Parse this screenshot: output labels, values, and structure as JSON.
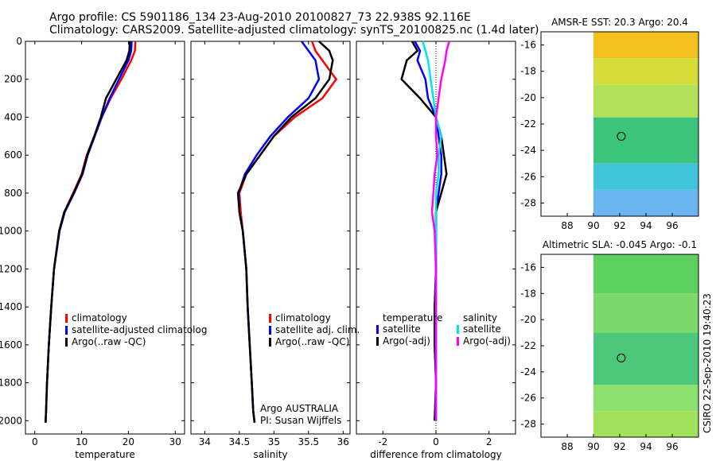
{
  "header": {
    "line1": "Argo profile: CS 5901186_134 23-Aug-2010 20100827_73 22.938S 92.116E",
    "line2": "Climatology: CARS2009. Satellite-adjusted climatology: synTS_20100825.nc (1.4d later)"
  },
  "footer_stamp": "CSIRO 22-Sep-2010 19:40:23",
  "colors": {
    "climatology": "#ff0000",
    "satellite": "#0000ff",
    "argo": "#000000",
    "salinity_sat": "#00e5e5",
    "salinity_argo": "#ff00ff"
  },
  "chart_data": [
    {
      "type": "line",
      "id": "temperature",
      "xlabel": "temperature",
      "ylabel": "",
      "xlim": [
        -2,
        32
      ],
      "ylim": [
        2070,
        0
      ],
      "xticks": [
        0,
        10,
        20,
        30
      ],
      "yticks": [
        0,
        200,
        400,
        600,
        800,
        1000,
        1200,
        1400,
        1600,
        1800,
        2000
      ],
      "legend": [
        "climatology",
        "satellite-adjusted climatolog",
        "Argo(..raw -QC)"
      ],
      "series": [
        {
          "name": "climatology",
          "color": "#ff0000",
          "x": [
            21.5,
            21.4,
            20.6,
            18.5,
            16.2,
            14.3,
            12.7,
            11.1,
            10.0,
            8.2,
            6.3,
            5.2,
            4.1,
            3.5,
            3.0,
            2.6,
            2.4,
            2.3
          ],
          "y": [
            0,
            50,
            100,
            200,
            300,
            400,
            500,
            600,
            700,
            800,
            900,
            1000,
            1200,
            1400,
            1600,
            1800,
            1950,
            2010
          ]
        },
        {
          "name": "satellite-adjusted climatology",
          "color": "#0000ff",
          "x": [
            20.7,
            20.6,
            20.0,
            18.0,
            16.0,
            14.3,
            12.8,
            11.3,
            10.2,
            8.4,
            6.4,
            5.3,
            4.1,
            3.5,
            3.0,
            2.6,
            2.4,
            2.3
          ],
          "y": [
            0,
            50,
            100,
            200,
            300,
            400,
            500,
            600,
            700,
            800,
            900,
            1000,
            1200,
            1400,
            1600,
            1800,
            1950,
            2010
          ]
        },
        {
          "name": "Argo(..raw -QC)",
          "color": "#000000",
          "x": [
            20.3,
            20.2,
            19.6,
            17.4,
            15.2,
            14.1,
            12.7,
            11.2,
            10.1,
            8.3,
            6.3,
            5.2,
            4.1,
            3.5,
            3.0,
            2.6,
            2.4,
            2.3
          ],
          "y": [
            0,
            50,
            100,
            200,
            300,
            400,
            500,
            600,
            700,
            800,
            900,
            1000,
            1200,
            1400,
            1600,
            1800,
            1950,
            2010
          ]
        }
      ]
    },
    {
      "type": "line",
      "id": "salinity",
      "xlabel": "salinity",
      "xlim": [
        33.8,
        36.1
      ],
      "ylim": [
        2070,
        0
      ],
      "xticks": [
        34,
        34.5,
        35,
        35.5,
        36
      ],
      "legend": [
        "climatology",
        "satellite adj. clim.",
        "Argo(..raw -QC)"
      ],
      "annotation": [
        "Argo AUSTRALIA",
        "PI: Susan Wijffels"
      ],
      "series": [
        {
          "name": "climatology",
          "color": "#ff0000",
          "x": [
            35.55,
            35.6,
            35.7,
            35.9,
            35.7,
            35.3,
            35.0,
            34.8,
            34.6,
            34.5,
            34.52,
            34.55,
            34.6,
            34.62,
            34.65,
            34.68,
            34.7,
            34.72
          ],
          "y": [
            0,
            50,
            100,
            200,
            300,
            400,
            500,
            600,
            700,
            800,
            900,
            1000,
            1200,
            1400,
            1600,
            1800,
            1950,
            2010
          ]
        },
        {
          "name": "satellite adj. clim.",
          "color": "#0000ff",
          "x": [
            35.4,
            35.5,
            35.6,
            35.65,
            35.5,
            35.2,
            34.95,
            34.75,
            34.58,
            34.49,
            34.5,
            34.55,
            34.6,
            34.62,
            34.65,
            34.68,
            34.7,
            34.72
          ],
          "y": [
            0,
            50,
            100,
            200,
            300,
            400,
            500,
            600,
            700,
            800,
            900,
            1000,
            1200,
            1400,
            1600,
            1800,
            1950,
            2010
          ]
        },
        {
          "name": "Argo(..raw -QC)",
          "color": "#000000",
          "x": [
            35.65,
            35.8,
            35.85,
            35.8,
            35.6,
            35.25,
            35.0,
            34.8,
            34.6,
            34.48,
            34.5,
            34.55,
            34.6,
            34.62,
            34.65,
            34.68,
            34.7,
            34.72
          ],
          "y": [
            0,
            50,
            100,
            200,
            300,
            400,
            500,
            600,
            700,
            800,
            900,
            1000,
            1200,
            1400,
            1600,
            1800,
            1950,
            2010
          ]
        }
      ]
    },
    {
      "type": "line",
      "id": "difference",
      "xlabel": "difference from climatology",
      "xlim": [
        -3,
        3
      ],
      "ylim": [
        2070,
        0
      ],
      "xticks": [
        -2,
        0,
        2
      ],
      "zero_line": true,
      "legend_titles": [
        "temperature",
        "salinity"
      ],
      "legend": [
        "satellite",
        "Argo(-adj)",
        "satellite",
        "Argo(-adj)"
      ],
      "series": [
        {
          "name": "temperature satellite",
          "color": "#0000ff",
          "x": [
            -0.8,
            -0.6,
            -0.7,
            -0.4,
            -0.3,
            0.0,
            0.1,
            0.2,
            0.2,
            0.1,
            0.0,
            0.0,
            0.0,
            0.0,
            0.0,
            0.0,
            0.0
          ],
          "y": [
            0,
            50,
            100,
            200,
            300,
            400,
            500,
            600,
            700,
            800,
            900,
            1000,
            1200,
            1400,
            1600,
            1800,
            2000
          ]
        },
        {
          "name": "temperature Argo(-adj)",
          "color": "#000000",
          "x": [
            -0.9,
            -0.7,
            -1.1,
            -1.3,
            -0.6,
            0.0,
            0.2,
            0.3,
            0.4,
            0.2,
            0.0,
            0.0,
            0.0,
            -0.05,
            -0.05,
            0.0,
            -0.05
          ],
          "y": [
            0,
            50,
            100,
            200,
            300,
            400,
            500,
            600,
            700,
            800,
            900,
            1000,
            1200,
            1400,
            1600,
            1800,
            2000
          ]
        },
        {
          "name": "salinity satellite",
          "color": "#00e5e5",
          "x": [
            -0.5,
            -0.4,
            -0.3,
            -0.2,
            -0.1,
            0.0,
            0.2,
            0.1,
            0.1,
            0.0,
            0.0,
            0.0,
            0.0,
            0.0,
            0.0,
            0.0,
            0.0
          ],
          "y": [
            0,
            50,
            100,
            200,
            300,
            400,
            500,
            600,
            700,
            800,
            900,
            1000,
            1200,
            1400,
            1600,
            1800,
            2000
          ]
        },
        {
          "name": "salinity Argo(-adj)",
          "color": "#ff00ff",
          "x": [
            0.5,
            0.4,
            0.35,
            0.2,
            0.1,
            0.0,
            0.0,
            0.05,
            -0.05,
            -0.1,
            -0.15,
            -0.05,
            0.0,
            0.0,
            0.0,
            0.0,
            0.0
          ],
          "y": [
            0,
            50,
            100,
            200,
            300,
            400,
            500,
            600,
            700,
            800,
            900,
            1000,
            1200,
            1400,
            1600,
            1800,
            2000
          ]
        }
      ]
    },
    {
      "type": "heatmap",
      "id": "sst",
      "title": "AMSR-E SST: 20.3 Argo: 20.4",
      "xlim": [
        86,
        98
      ],
      "ylim": [
        -29,
        -15
      ],
      "xticks": [
        88,
        90,
        92,
        94,
        96
      ],
      "yticks": [
        -16,
        -18,
        -20,
        -22,
        -24,
        -26,
        -28
      ],
      "data_xmin": 90,
      "argo_position": [
        92.116,
        -22.938
      ],
      "bands": [
        {
          "from": -15,
          "to": -17,
          "color": "#f4c020"
        },
        {
          "from": -17,
          "to": -19,
          "color": "#d4dc3a"
        },
        {
          "from": -19,
          "to": -21.5,
          "color": "#b2e058"
        },
        {
          "from": -21.5,
          "to": -25,
          "color": "#3cc47a"
        },
        {
          "from": -25,
          "to": -27,
          "color": "#40c4d8"
        },
        {
          "from": -27,
          "to": -29,
          "color": "#6ab4f2"
        }
      ]
    },
    {
      "type": "heatmap",
      "id": "sla",
      "title": "Altimetric SLA: -0.045 Argo: -0.1",
      "xlim": [
        86,
        98
      ],
      "ylim": [
        -29,
        -15
      ],
      "xticks": [
        88,
        90,
        92,
        94,
        96
      ],
      "yticks": [
        -16,
        -18,
        -20,
        -22,
        -24,
        -26,
        -28
      ],
      "data_xmin": 90,
      "argo_position": [
        92.116,
        -22.938
      ],
      "bands": [
        {
          "from": -15,
          "to": -18,
          "color": "#5ed060"
        },
        {
          "from": -18,
          "to": -21,
          "color": "#7cd86a"
        },
        {
          "from": -21,
          "to": -25,
          "color": "#4cc87a"
        },
        {
          "from": -25,
          "to": -27,
          "color": "#8ce070"
        },
        {
          "from": -27,
          "to": -29,
          "color": "#a0e05a"
        }
      ]
    }
  ]
}
